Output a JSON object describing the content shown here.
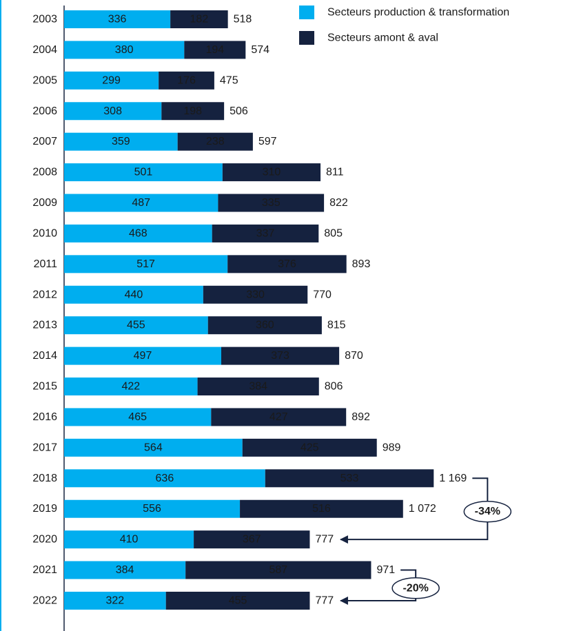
{
  "chart_data": {
    "type": "stacked-barh",
    "categories": [
      "2003",
      "2004",
      "2005",
      "2006",
      "2007",
      "2008",
      "2009",
      "2010",
      "2011",
      "2012",
      "2013",
      "2014",
      "2015",
      "2016",
      "2017",
      "2018",
      "2019",
      "2020",
      "2021",
      "2022"
    ],
    "series": [
      {
        "name": "Secteurs production & transformation",
        "color": "#00aeef",
        "values": [
          336,
          380,
          299,
          308,
          359,
          501,
          487,
          468,
          517,
          440,
          455,
          497,
          422,
          465,
          564,
          636,
          556,
          410,
          384,
          322
        ]
      },
      {
        "name": "Secteurs amont & aval",
        "color": "#15223f",
        "values": [
          182,
          194,
          176,
          198,
          238,
          310,
          335,
          337,
          376,
          330,
          360,
          373,
          384,
          427,
          425,
          533,
          516,
          367,
          587,
          455
        ]
      }
    ],
    "totals": {
      "values": [
        518,
        574,
        475,
        506,
        597,
        811,
        822,
        805,
        893,
        770,
        815,
        870,
        806,
        892,
        989,
        1169,
        1072,
        777,
        971,
        777
      ],
      "value_labels": [
        "518",
        "574",
        "475",
        "506",
        "597",
        "811",
        "822",
        "805",
        "893",
        "770",
        "815",
        "870",
        "806",
        "892",
        "989",
        "1 169",
        "1 072",
        "777",
        "971",
        "777"
      ]
    },
    "annotations": [
      {
        "text": "-34%",
        "from": "2018",
        "to": "2020"
      },
      {
        "text": "-20%",
        "from": "2021",
        "to": "2022"
      }
    ],
    "xlim": [
      0,
      1600
    ],
    "legend": "top-right"
  }
}
